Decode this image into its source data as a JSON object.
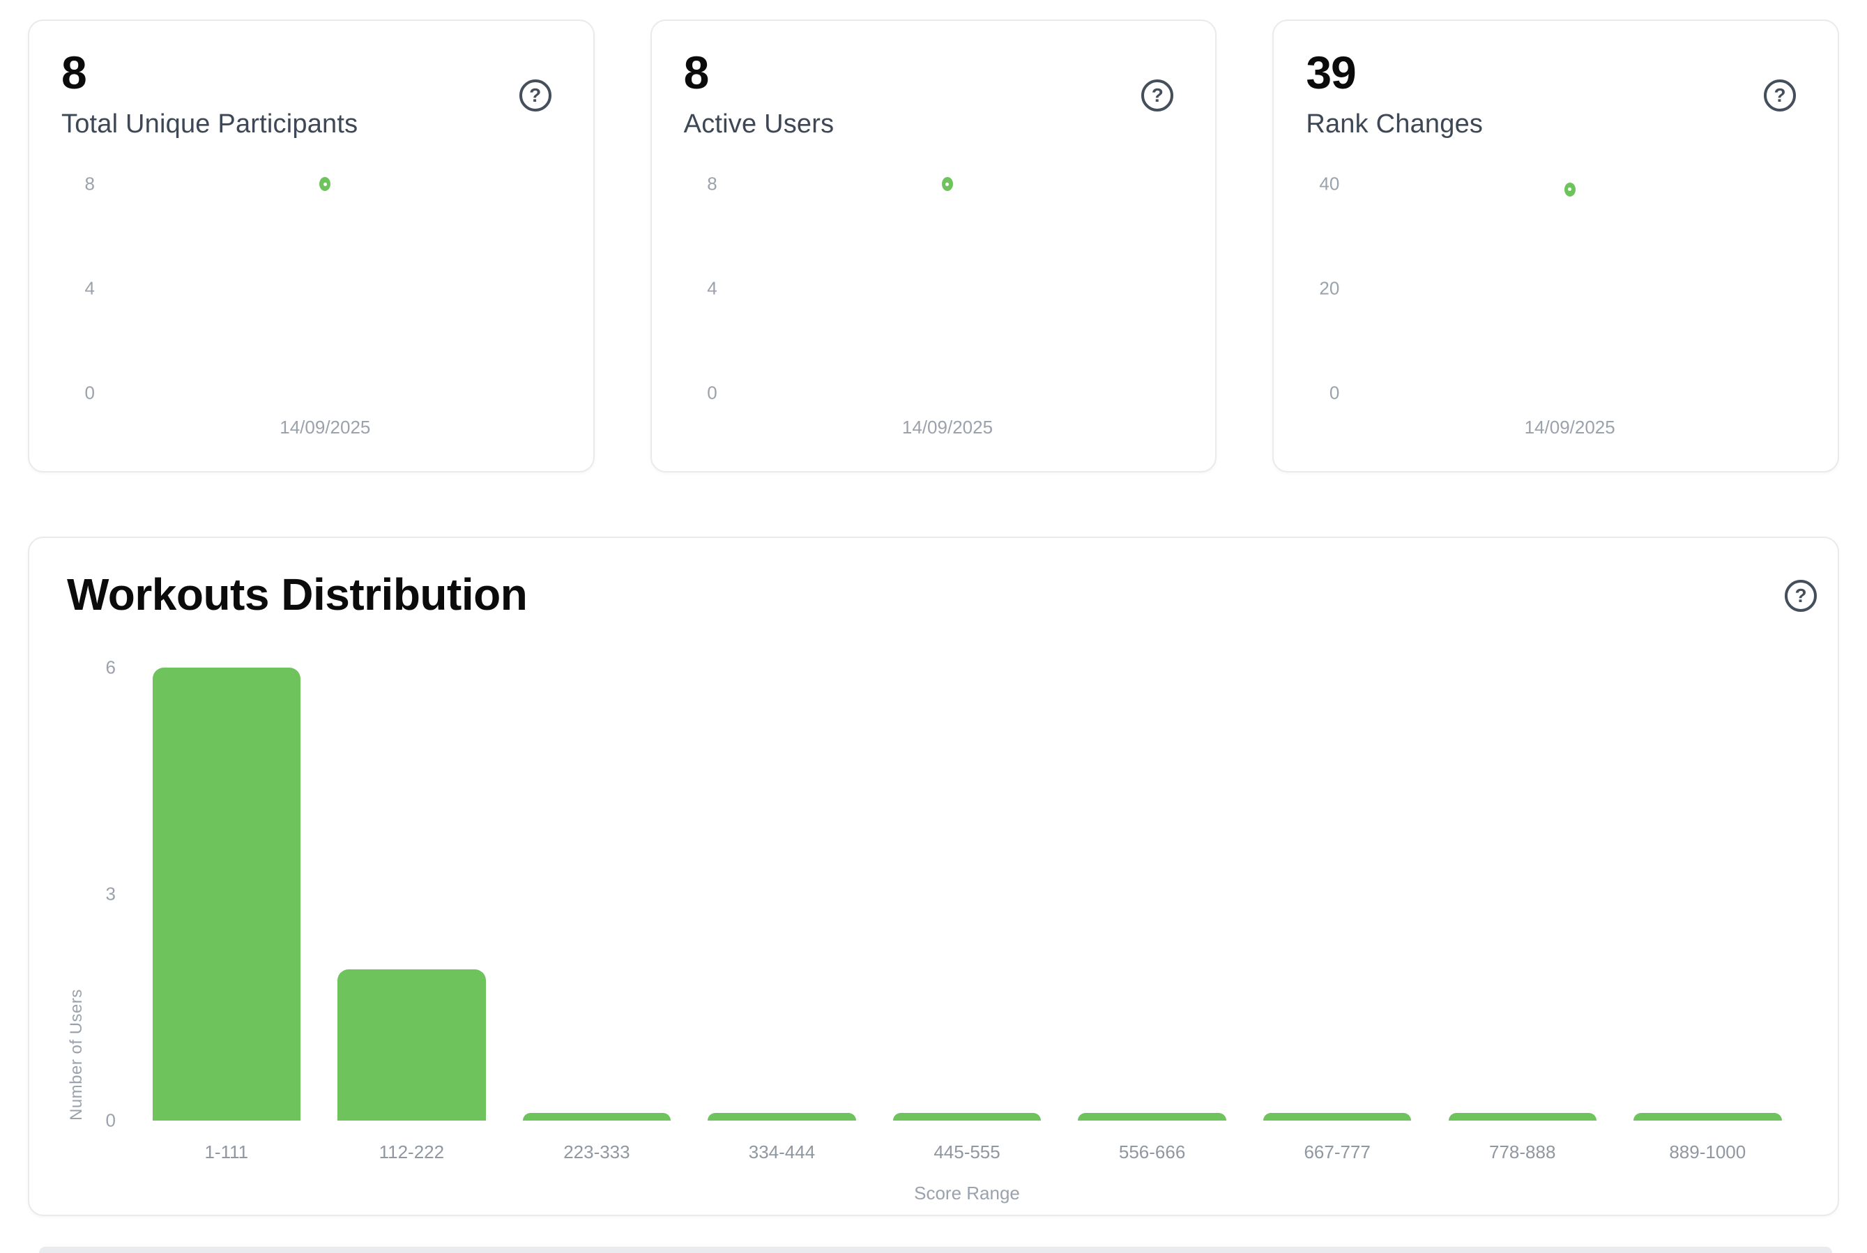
{
  "colors": {
    "accent_green": "#6ec35c",
    "chart_text_gray": "#9aa2ac",
    "axis_label_gray": "#8f97a1",
    "stat_label_slate": "#3d4755",
    "icon_slate": "#454f5b",
    "heading_black": "#0b0b0c",
    "card_border": "#e8eaee",
    "next_section_gray": "#e9ebee"
  },
  "icons": {
    "help_glyph": "?"
  },
  "stat_cards": [
    {
      "value": "8",
      "label": "Total Unique Participants"
    },
    {
      "value": "8",
      "label": "Active Users"
    },
    {
      "value": "39",
      "label": "Rank Changes"
    }
  ],
  "workouts": {
    "title": "Workouts Distribution"
  },
  "chart_data": [
    {
      "type": "scatter",
      "title": "Total Unique Participants",
      "x": [
        "14/09/2025"
      ],
      "y": [
        8
      ],
      "y_ticks": [
        8,
        4,
        0
      ],
      "ylim": [
        0,
        8
      ],
      "grid": false,
      "legend": "none",
      "point_color": "#6ec35c"
    },
    {
      "type": "scatter",
      "title": "Active Users",
      "x": [
        "14/09/2025"
      ],
      "y": [
        8
      ],
      "y_ticks": [
        8,
        4,
        0
      ],
      "ylim": [
        0,
        8
      ],
      "grid": false,
      "legend": "none",
      "point_color": "#6ec35c"
    },
    {
      "type": "scatter",
      "title": "Rank Changes",
      "x": [
        "14/09/2025"
      ],
      "y": [
        39
      ],
      "y_ticks": [
        40,
        20,
        0
      ],
      "ylim": [
        0,
        40
      ],
      "grid": false,
      "legend": "none",
      "point_color": "#6ec35c"
    },
    {
      "type": "bar",
      "title": "Workouts Distribution",
      "categories": [
        "1-111",
        "112-222",
        "223-333",
        "334-444",
        "445-555",
        "556-666",
        "667-777",
        "778-888",
        "889-1000"
      ],
      "values": [
        6,
        2,
        0,
        0,
        0,
        0,
        0,
        0,
        0
      ],
      "xlabel": "Score Range",
      "ylabel": "Number of Users",
      "y_ticks": [
        6,
        3,
        0
      ],
      "ylim": [
        0,
        6
      ],
      "grid": false,
      "legend": "none",
      "bar_color": "#6ec35c"
    }
  ]
}
